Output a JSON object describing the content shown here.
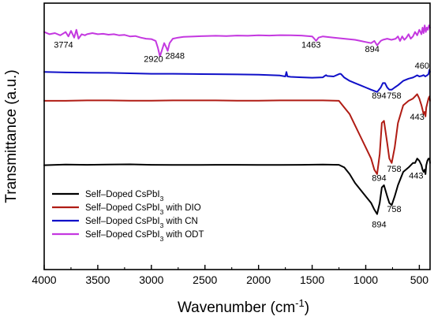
{
  "chart_data": {
    "type": "line",
    "xlabel": "Wavenumber (cm",
    "xlabel_sup": "-1",
    "xlabel_tail": ")",
    "ylabel": "Transmittance (a.u.)",
    "xlim": [
      4000,
      400
    ],
    "x_reversed": true,
    "y_ticks_visible": false,
    "grid": false,
    "legend_position": "bottom-left",
    "x_ticks": [
      "4000",
      "3500",
      "3000",
      "2500",
      "2000",
      "1500",
      "1000",
      "500"
    ],
    "x_tick_values": [
      4000,
      3500,
      3000,
      2500,
      2000,
      1500,
      1000,
      500
    ],
    "series": [
      {
        "name": "Self-Doped CsPbI3",
        "name_parts": [
          "Self–Doped CsPbI",
          "3",
          ""
        ],
        "color": "#000000",
        "x": [
          4000,
          3800,
          3600,
          3400,
          3200,
          3000,
          2800,
          2600,
          2400,
          2200,
          2000,
          1800,
          1600,
          1400,
          1250,
          1200,
          1150,
          1100,
          1050,
          1000,
          950,
          920,
          894,
          870,
          850,
          830,
          800,
          780,
          758,
          730,
          700,
          650,
          600,
          560,
          540,
          520,
          500,
          480,
          470,
          460,
          450,
          443,
          435,
          425,
          415,
          405,
          400
        ],
        "y": [
          0.47,
          0.473,
          0.472,
          0.473,
          0.474,
          0.472,
          0.471,
          0.471,
          0.472,
          0.472,
          0.471,
          0.471,
          0.472,
          0.473,
          0.472,
          0.46,
          0.43,
          0.39,
          0.36,
          0.33,
          0.3,
          0.27,
          0.25,
          0.3,
          0.37,
          0.38,
          0.33,
          0.3,
          0.29,
          0.33,
          0.38,
          0.44,
          0.46,
          0.48,
          0.48,
          0.5,
          0.49,
          0.47,
          0.45,
          0.44,
          0.45,
          0.43,
          0.47,
          0.49,
          0.5,
          0.5,
          0.48
        ]
      },
      {
        "name": "Self-Doped CsPbI3 with DIO",
        "name_parts": [
          "Self–Doped CsPbI",
          "3",
          " with DIO"
        ],
        "color": "#b01c14",
        "x": [
          4000,
          3800,
          3600,
          3400,
          3200,
          3000,
          2800,
          2600,
          2400,
          2200,
          2000,
          1800,
          1600,
          1400,
          1250,
          1200,
          1150,
          1100,
          1050,
          1000,
          950,
          920,
          894,
          870,
          850,
          830,
          800,
          780,
          758,
          730,
          700,
          650,
          600,
          560,
          540,
          520,
          500,
          480,
          470,
          460,
          450,
          443,
          435,
          425,
          415,
          405,
          400
        ],
        "y": [
          0.76,
          0.76,
          0.762,
          0.762,
          0.761,
          0.761,
          0.762,
          0.762,
          0.762,
          0.761,
          0.761,
          0.762,
          0.762,
          0.762,
          0.76,
          0.73,
          0.7,
          0.65,
          0.6,
          0.55,
          0.5,
          0.45,
          0.43,
          0.52,
          0.66,
          0.67,
          0.57,
          0.5,
          0.48,
          0.55,
          0.66,
          0.74,
          0.76,
          0.77,
          0.78,
          0.79,
          0.77,
          0.74,
          0.72,
          0.7,
          0.71,
          0.69,
          0.73,
          0.75,
          0.77,
          0.78,
          0.76
        ]
      },
      {
        "name": "Self-Doped CsPbI3 with CN",
        "name_parts": [
          "Self–Doped CsPbI",
          "3",
          " with CN"
        ],
        "color": "#1010c8",
        "x": [
          4000,
          3800,
          3600,
          3400,
          3200,
          3000,
          2800,
          2600,
          2400,
          2200,
          2000,
          1800,
          1750,
          1740,
          1730,
          1700,
          1600,
          1500,
          1400,
          1380,
          1370,
          1360,
          1300,
          1250,
          1240,
          1230,
          1200,
          1150,
          1100,
          1050,
          1000,
          950,
          894,
          860,
          840,
          820,
          800,
          780,
          758,
          730,
          700,
          650,
          600,
          560,
          540,
          520,
          500,
          480,
          460,
          445,
          430,
          415,
          405,
          400
        ],
        "y": [
          0.89,
          0.888,
          0.887,
          0.886,
          0.884,
          0.882,
          0.882,
          0.881,
          0.88,
          0.879,
          0.878,
          0.874,
          0.87,
          0.89,
          0.87,
          0.868,
          0.866,
          0.864,
          0.866,
          0.873,
          0.876,
          0.872,
          0.87,
          0.88,
          0.882,
          0.88,
          0.865,
          0.85,
          0.84,
          0.83,
          0.82,
          0.81,
          0.8,
          0.82,
          0.84,
          0.84,
          0.82,
          0.81,
          0.81,
          0.82,
          0.83,
          0.85,
          0.86,
          0.865,
          0.87,
          0.875,
          0.87,
          0.872,
          0.876,
          0.87,
          0.874,
          0.88,
          0.9,
          0.89
        ]
      },
      {
        "name": "Self-Doped CsPbI3 with ODT",
        "name_parts": [
          "Self–Doped CsPbI",
          "3",
          " with ODT"
        ],
        "color": "#c438e0",
        "x": [
          4000,
          3950,
          3900,
          3850,
          3800,
          3774,
          3750,
          3720,
          3700,
          3680,
          3650,
          3620,
          3600,
          3550,
          3500,
          3450,
          3400,
          3350,
          3300,
          3250,
          3200,
          3150,
          3100,
          3050,
          3000,
          2960,
          2940,
          2920,
          2900,
          2880,
          2860,
          2848,
          2830,
          2800,
          2750,
          2700,
          2600,
          2500,
          2400,
          2300,
          2200,
          2100,
          2000,
          1900,
          1800,
          1700,
          1600,
          1500,
          1480,
          1463,
          1440,
          1400,
          1300,
          1200,
          1100,
          1050,
          1000,
          950,
          920,
          894,
          860,
          840,
          800,
          760,
          720,
          700,
          680,
          660,
          640,
          620,
          600,
          580,
          560,
          540,
          520,
          500,
          480,
          470,
          460,
          450,
          440,
          430,
          420,
          410,
          400
        ],
        "y": [
          1.07,
          1.06,
          1.065,
          1.055,
          1.07,
          1.05,
          1.075,
          1.045,
          1.08,
          1.04,
          1.06,
          1.055,
          1.06,
          1.065,
          1.06,
          1.062,
          1.058,
          1.06,
          1.055,
          1.057,
          1.05,
          1.052,
          1.045,
          1.04,
          1.038,
          1.03,
          1.0,
          0.96,
          0.99,
          1.02,
          1.0,
          0.985,
          1.02,
          1.04,
          1.045,
          1.048,
          1.05,
          1.052,
          1.053,
          1.052,
          1.054,
          1.053,
          1.055,
          1.054,
          1.056,
          1.055,
          1.054,
          1.05,
          1.04,
          1.03,
          1.045,
          1.05,
          1.045,
          1.04,
          1.035,
          1.03,
          1.025,
          1.02,
          1.03,
          1.01,
          1.03,
          1.035,
          1.04,
          1.035,
          1.04,
          1.05,
          1.03,
          1.05,
          1.035,
          1.045,
          1.06,
          1.04,
          1.05,
          1.07,
          1.055,
          1.08,
          1.06,
          1.09,
          1.065,
          1.1,
          1.07,
          1.09,
          1.08,
          1.1,
          1.09
        ]
      }
    ],
    "annotations": [
      {
        "text": "3774",
        "x": 3820,
        "y": 1.0
      },
      {
        "text": "2920",
        "x": 2980,
        "y": 0.935
      },
      {
        "text": "2848",
        "x": 2780,
        "y": 0.95
      },
      {
        "text": "1463",
        "x": 1510,
        "y": 1.0
      },
      {
        "text": "894",
        "x": 940,
        "y": 0.98
      },
      {
        "text": "460",
        "x": 475,
        "y": 0.905
      },
      {
        "text": "894",
        "x": 875,
        "y": 0.77
      },
      {
        "text": "758",
        "x": 735,
        "y": 0.77
      },
      {
        "text": "443",
        "x": 520,
        "y": 0.675
      },
      {
        "text": "894",
        "x": 875,
        "y": 0.4
      },
      {
        "text": "758",
        "x": 735,
        "y": 0.44
      },
      {
        "text": "443",
        "x": 530,
        "y": 0.41
      },
      {
        "text": "894",
        "x": 875,
        "y": 0.19
      },
      {
        "text": "758",
        "x": 735,
        "y": 0.26
      }
    ]
  }
}
